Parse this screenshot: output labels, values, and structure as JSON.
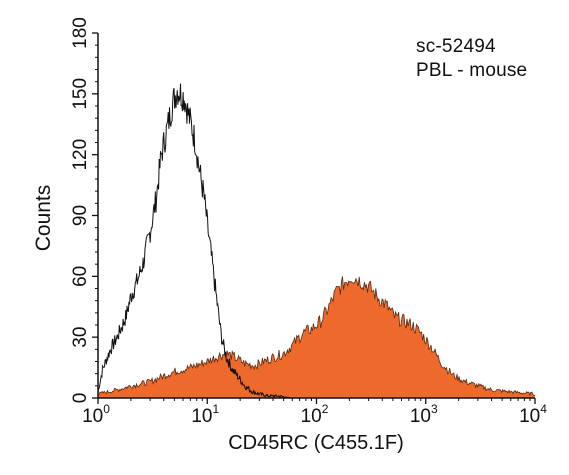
{
  "chart_data": {
    "type": "area",
    "title": "",
    "xlabel": "CD45RC (C455.1F)",
    "ylabel": "Counts",
    "xscale": "log",
    "xlim": [
      1,
      10000
    ],
    "ylim": [
      0,
      180
    ],
    "x_ticks": [
      {
        "base": "10",
        "exp": "0"
      },
      {
        "base": "10",
        "exp": "1"
      },
      {
        "base": "10",
        "exp": "2"
      },
      {
        "base": "10",
        "exp": "3"
      },
      {
        "base": "10",
        "exp": "4"
      }
    ],
    "y_ticks": [
      "0",
      "30",
      "60",
      "90",
      "120",
      "150",
      "180"
    ],
    "annotations": [
      "sc-52494",
      "PBL - mouse"
    ],
    "grid": false,
    "legend": "none",
    "series": [
      {
        "style": "outline",
        "color": "#111111",
        "x": [
          1.0,
          1.1,
          1.3,
          1.5,
          1.8,
          2.0,
          2.3,
          2.6,
          3.0,
          3.4,
          3.8,
          4.3,
          4.8,
          5.3,
          5.8,
          6.2,
          6.7,
          7.2,
          7.8,
          8.5,
          9.3,
          10.2,
          11.2,
          12.3,
          13.5,
          15.0,
          17.0,
          19.5,
          22.0,
          26.0,
          30.0,
          36.0,
          45.0,
          60.0,
          90.0,
          150.0,
          300.0
        ],
        "values": [
          3,
          14,
          24,
          30,
          40,
          50,
          58,
          67,
          82,
          98,
          120,
          133,
          145,
          152,
          150,
          148,
          140,
          134,
          126,
          112,
          100,
          82,
          65,
          47,
          30,
          20,
          14,
          10,
          6,
          3,
          2,
          1,
          1,
          0,
          0,
          0,
          0
        ]
      },
      {
        "style": "filled",
        "color": "#ee6a2c",
        "x": [
          1.0,
          1.5,
          2.0,
          3.0,
          4.0,
          5.0,
          7.0,
          10.0,
          13.0,
          15.0,
          18.0,
          22.0,
          27.0,
          33.0,
          40.0,
          50.0,
          60.0,
          75.0,
          90.0,
          110.0,
          130.0,
          150.0,
          180.0,
          210.0,
          250.0,
          300.0,
          360.0,
          430.0,
          520.0,
          620.0,
          750.0,
          900.0,
          1100.0,
          1400.0,
          1800.0,
          2300.0,
          3000.0,
          4000.0,
          6000.0,
          10000.0
        ],
        "values": [
          2,
          4,
          6,
          8,
          11,
          13,
          15,
          18,
          21,
          22,
          20,
          17,
          16,
          18,
          20,
          22,
          26,
          32,
          34,
          38,
          45,
          52,
          57,
          60,
          58,
          55,
          50,
          46,
          40,
          38,
          36,
          32,
          26,
          17,
          11,
          8,
          6,
          4,
          3,
          2
        ]
      }
    ]
  }
}
